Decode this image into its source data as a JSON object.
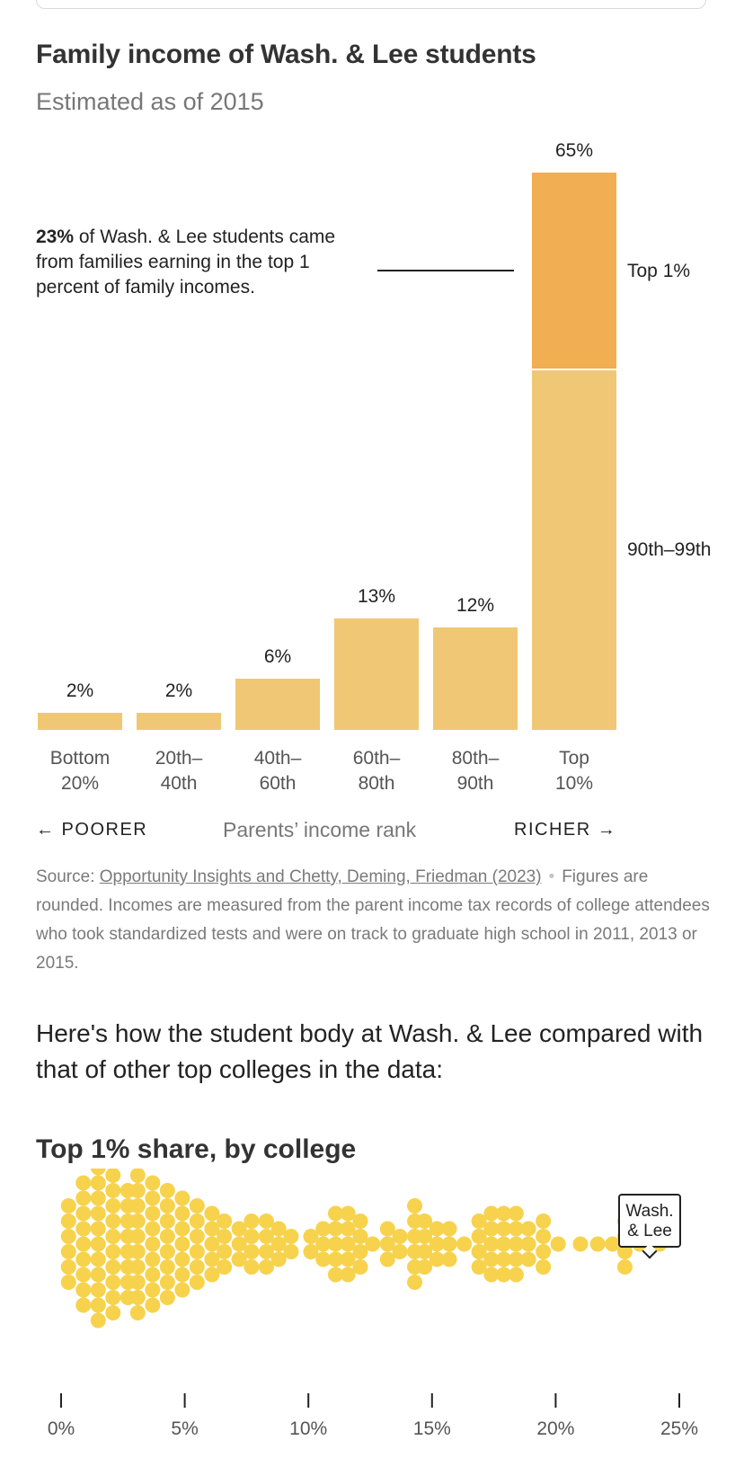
{
  "chart_data": [
    {
      "type": "bar",
      "title": "Family income of Wash. & Lee students",
      "subtitle": "Estimated as of 2015",
      "xlabel": "Parents’ income rank",
      "x_direction_left": "← POORER",
      "x_direction_right": "RICHER →",
      "categories": [
        "Bottom 20%",
        "20th–40th",
        "40th–60th",
        "60th–80th",
        "80th–90th",
        "Top 10%"
      ],
      "category_lines": [
        [
          "Bottom",
          "20%"
        ],
        [
          "20th–",
          "40th"
        ],
        [
          "40th–",
          "60th"
        ],
        [
          "60th–",
          "80th"
        ],
        [
          "80th–",
          "90th"
        ],
        [
          "Top",
          "10%"
        ]
      ],
      "values": [
        2,
        2,
        6,
        13,
        12,
        65
      ],
      "value_labels": [
        "2%",
        "2%",
        "6%",
        "13%",
        "12%",
        "65%"
      ],
      "top_bar_segments": [
        {
          "name": "90th–99th",
          "value": 42,
          "color": "#f0c775"
        },
        {
          "name": "Top 1%",
          "value": 23,
          "color": "#f2ae52"
        }
      ],
      "annotation": {
        "bold": "23%",
        "text": " of Wash. & Lee students came from families earning in the top 1 percent of family incomes."
      },
      "ylim": [
        0,
        65
      ],
      "bar_color": "#f0c775"
    },
    {
      "type": "scatter",
      "title": "Top 1% share, by college",
      "xlim": [
        0,
        25
      ],
      "x_ticks": [
        "0%",
        "5%",
        "10%",
        "15%",
        "20%",
        "25%"
      ],
      "highlight": {
        "name": "Wash. & Lee",
        "lines": [
          "Wash.",
          "& Lee"
        ],
        "value": 23,
        "color": "#1f1150"
      },
      "dot_color": "#f7d24c",
      "values": [
        0.3,
        0.3,
        0.3,
        0.3,
        0.3,
        0.3,
        0.9,
        0.9,
        0.9,
        0.9,
        0.9,
        0.9,
        0.9,
        0.9,
        0.9,
        1.5,
        1.5,
        1.5,
        1.5,
        1.5,
        1.5,
        1.5,
        1.5,
        1.5,
        1.5,
        1.5,
        2.1,
        2.1,
        2.1,
        2.1,
        2.1,
        2.1,
        2.1,
        2.1,
        2.1,
        2.1,
        2.7,
        2.7,
        2.7,
        2.7,
        2.7,
        2.7,
        2.7,
        2.7,
        3.1,
        3.1,
        3.1,
        3.1,
        3.1,
        3.1,
        3.1,
        3.1,
        3.1,
        3.1,
        3.7,
        3.7,
        3.7,
        3.7,
        3.7,
        3.7,
        3.7,
        3.7,
        3.7,
        4.3,
        4.3,
        4.3,
        4.3,
        4.3,
        4.3,
        4.3,
        4.3,
        4.9,
        4.9,
        4.9,
        4.9,
        4.9,
        4.9,
        4.9,
        5.5,
        5.5,
        5.5,
        5.5,
        5.5,
        5.5,
        6.1,
        6.1,
        6.1,
        6.1,
        6.1,
        6.6,
        6.6,
        6.6,
        6.6,
        7.2,
        7.2,
        7.2,
        7.7,
        7.7,
        7.7,
        7.7,
        8.3,
        8.3,
        8.3,
        8.3,
        8.8,
        8.8,
        8.8,
        9.3,
        9.3,
        10.1,
        10.1,
        10.6,
        10.6,
        10.6,
        11.1,
        11.1,
        11.1,
        11.1,
        11.1,
        11.6,
        11.6,
        11.6,
        11.6,
        11.6,
        12.1,
        12.1,
        12.1,
        12.1,
        12.6,
        13.2,
        13.2,
        13.2,
        13.7,
        13.7,
        14.3,
        14.3,
        14.3,
        14.3,
        14.3,
        14.3,
        14.7,
        14.7,
        14.7,
        14.7,
        15.2,
        15.2,
        15.2,
        15.7,
        15.7,
        15.7,
        16.3,
        16.9,
        16.9,
        16.9,
        16.9,
        17.4,
        17.4,
        17.4,
        17.4,
        17.4,
        17.9,
        17.9,
        17.9,
        17.9,
        17.9,
        18.4,
        18.4,
        18.4,
        18.4,
        18.4,
        18.9,
        18.9,
        18.9,
        19.5,
        19.5,
        19.5,
        19.5,
        20.1,
        21.0,
        21.7,
        22.3,
        22.8,
        22.8,
        22.8,
        22.8,
        23.4,
        24.2
      ]
    }
  ],
  "source": {
    "prefix": "Source: ",
    "link": "Opportunity Insights and Chetty, Deming, Friedman (2023)",
    "separator": "•",
    "text": "Figures are rounded. Incomes are measured from the parent income tax records of college attendees who took standardized tests and were on track to graduate high school in 2011, 2013 or 2015."
  },
  "intro_text": "Here's how the student body at Wash. & Lee compared with that of other top colleges in the data:"
}
